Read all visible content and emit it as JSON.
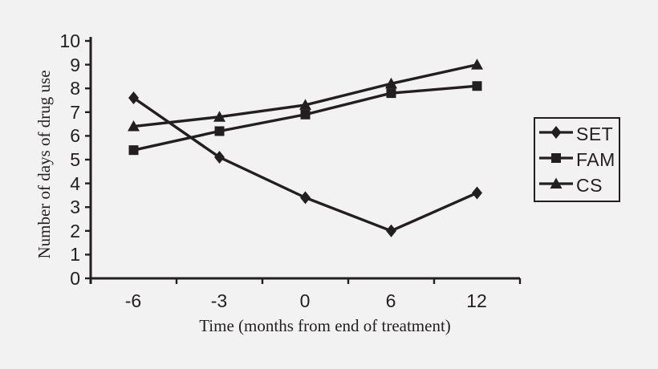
{
  "figure": {
    "background_color": "#f2f2f2",
    "ink_color": "#231f20"
  },
  "chart_data": {
    "type": "line",
    "title": "",
    "xlabel": "Time (months from end of treatment)",
    "ylabel": "Number of days of drug use",
    "x_tick_labels": [
      "-6",
      "-3",
      "0",
      "6",
      "12"
    ],
    "x_values": [
      -6,
      -3,
      0,
      6,
      12
    ],
    "y_ticks": [
      0,
      1,
      2,
      3,
      4,
      5,
      6,
      7,
      8,
      9,
      10
    ],
    "ylim": [
      0,
      10
    ],
    "grid": false,
    "legend_position": "right",
    "line_color": "#231f20",
    "series": [
      {
        "name": "SET",
        "marker": "diamond",
        "values": [
          7.6,
          5.1,
          3.4,
          2.0,
          3.6
        ]
      },
      {
        "name": "FAM",
        "marker": "square",
        "values": [
          5.4,
          6.2,
          6.9,
          7.8,
          8.1
        ]
      },
      {
        "name": "CS",
        "marker": "triangle",
        "values": [
          6.4,
          6.8,
          7.3,
          8.2,
          9.0
        ]
      }
    ]
  }
}
